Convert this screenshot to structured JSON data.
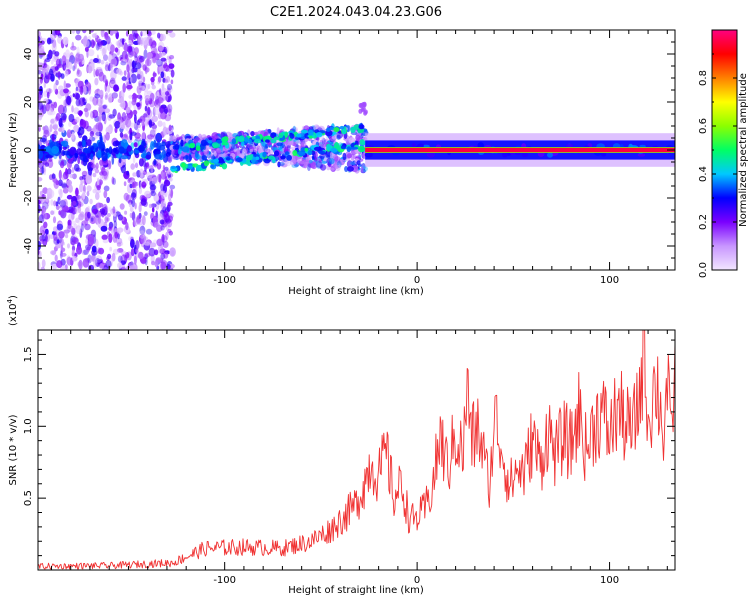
{
  "title": "C2E1.2024.043.04.23.G06",
  "chart_data": [
    {
      "type": "heatmap",
      "xlabel": "Height of straight line (km)",
      "ylabel": "Frequency (Hz)",
      "xlim": [
        -197,
        134
      ],
      "ylim": [
        -50,
        50
      ],
      "xticks": [
        -100,
        0,
        100
      ],
      "yticks": [
        -40,
        -20,
        0,
        20,
        40
      ],
      "colorbar": {
        "label": "Normalized spectral amplitude",
        "range": [
          0,
          1
        ],
        "ticks": [
          0.0,
          0.2,
          0.4,
          0.6,
          0.8
        ],
        "colors": [
          "#f2e6ff",
          "#c896ff",
          "#7a00ff",
          "#0000ff",
          "#00c8ff",
          "#00ff64",
          "#8cff00",
          "#ffff00",
          "#ff8000",
          "#ff0000",
          "#ff0080"
        ]
      },
      "features": [
        {
          "name": "noise",
          "x": [
            -197,
            -127
          ],
          "y": [
            -50,
            50
          ],
          "amplitude": 0.15
        },
        {
          "name": "band",
          "x": [
            -127,
            -27
          ],
          "y": [
            -6,
            8
          ],
          "amplitude": 0.4
        },
        {
          "name": "signal",
          "x": [
            -27,
            134
          ],
          "y": [
            -2,
            2
          ],
          "amplitude": 0.95
        }
      ]
    },
    {
      "type": "line",
      "xlabel": "Height of straight line (km)",
      "ylabel": "SNR (10 * v/v)",
      "ymultiplier": "(x10",
      "ymultiplier_exp": "4",
      "multiplier_close": ")",
      "xlim": [
        -197,
        134
      ],
      "ylim": [
        0,
        16700
      ],
      "xticks": [
        -100,
        0,
        100
      ],
      "yticks": [
        5000,
        10000,
        15000
      ],
      "ytick_labels": [
        "0.5",
        "1.0",
        "1.5"
      ],
      "color": "#f03232",
      "series": [
        {
          "x": [
            -197,
            -160,
            -127,
            -110,
            -90,
            -70,
            -55,
            -45,
            -38,
            -32,
            -28,
            -24,
            -20,
            -16,
            -12,
            -8,
            -4,
            0,
            4,
            8,
            12,
            16,
            20,
            24,
            26,
            28,
            32,
            36,
            38,
            40,
            44,
            48,
            52,
            56,
            60,
            64,
            68,
            72,
            76,
            80,
            84,
            88,
            92,
            96,
            100,
            104,
            108,
            112,
            116,
            118,
            120,
            124,
            126,
            128,
            130,
            132,
            134
          ],
          "y": [
            250,
            300,
            500,
            1500,
            1600,
            1500,
            2000,
            2800,
            3700,
            4500,
            5800,
            7500,
            6500,
            8200,
            5000,
            6000,
            3500,
            3600,
            4200,
            5800,
            9200,
            7000,
            9500,
            8000,
            13000,
            9000,
            9800,
            6800,
            6000,
            10800,
            8500,
            5800,
            7000,
            6800,
            9200,
            7300,
            9800,
            8000,
            9300,
            8600,
            11000,
            8200,
            10200,
            11000,
            9300,
            11300,
            10200,
            9500,
            12500,
            16400,
            10400,
            13200,
            11800,
            9500,
            12900,
            8600,
            15800
          ]
        }
      ]
    }
  ]
}
